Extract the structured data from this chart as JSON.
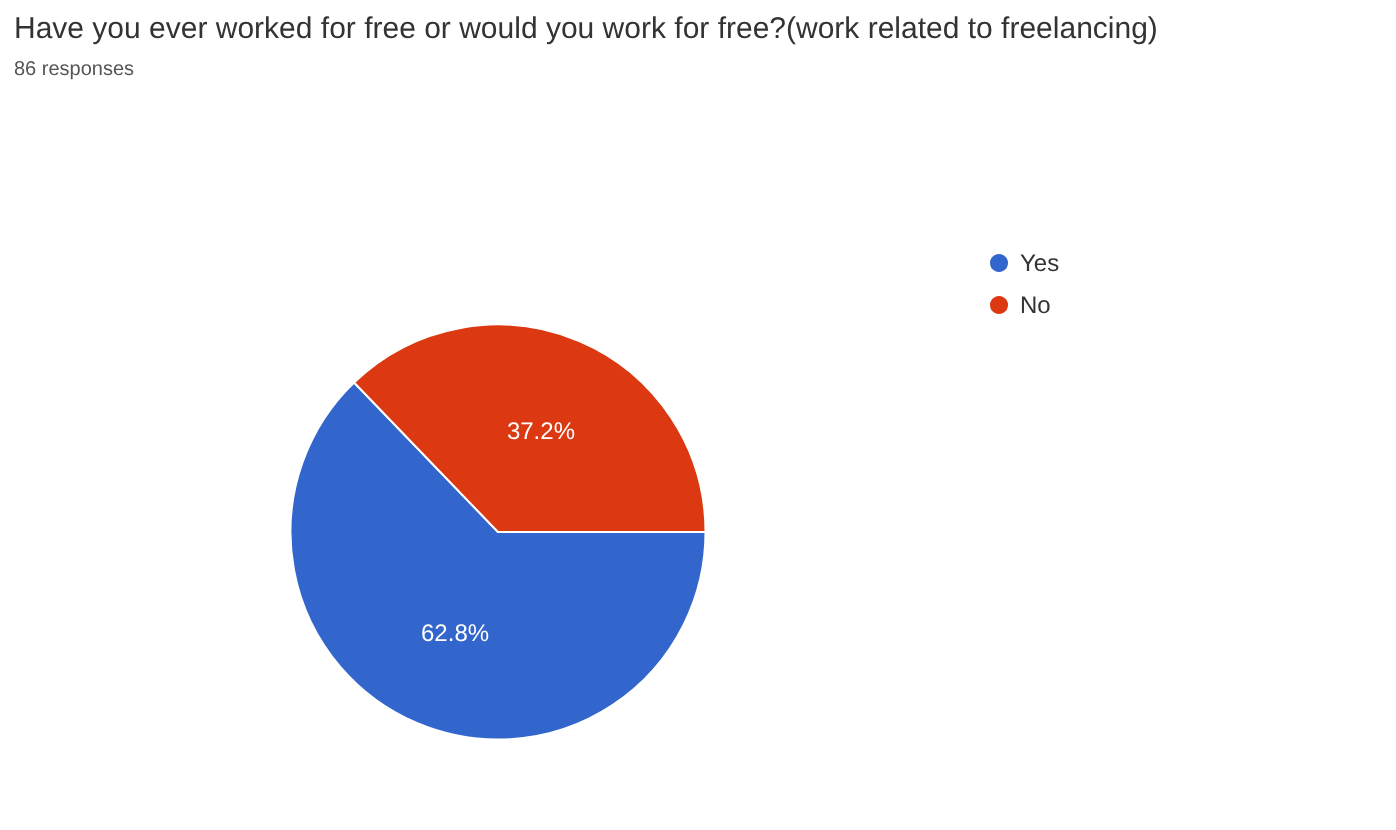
{
  "chart_data": {
    "type": "pie",
    "title": "Have you ever worked for free or would you work for free?(work related to freelancing)",
    "subtitle": "86 responses",
    "categories": [
      "Yes",
      "No"
    ],
    "values": [
      62.8,
      37.2
    ],
    "colors": [
      "#3366cc",
      "#dc3912"
    ],
    "legend": "right",
    "value_labels": [
      "62.8%",
      "37.2%"
    ]
  }
}
